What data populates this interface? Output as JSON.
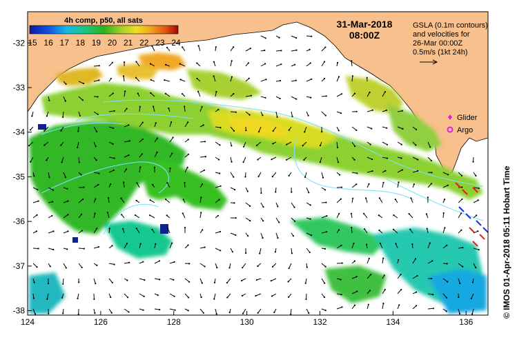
{
  "map": {
    "date_line": "31-Mar-2018",
    "time_line": "08:00Z",
    "colorbar": {
      "title": "4h comp, p50, all sats",
      "labels": [
        "15",
        "16",
        "17",
        "18",
        "19",
        "20",
        "21",
        "22",
        "23",
        "24"
      ],
      "min": 15,
      "max": 24
    },
    "gsla_legend": {
      "line1": "GSLA (0.1m contours)",
      "line2": "and velocities for",
      "line3": "26-Mar 00:00Z",
      "line4": "0.5m/s (1kt 24h)"
    },
    "symbol_legend": [
      {
        "label": "Glider",
        "color": "#e020e0",
        "icon": "diamond-icon"
      },
      {
        "label": "Argo",
        "color": "#e020e0",
        "icon": "ring-icon"
      }
    ],
    "x_axis": {
      "min": 124,
      "max": 136.6,
      "tick_labels": [
        "124",
        "126",
        "128",
        "130",
        "132",
        "134",
        "136"
      ]
    },
    "y_axis": {
      "min": -38.1,
      "max": -31.3,
      "tick_labels": [
        "-32",
        "-33",
        "-34",
        "-35",
        "-36",
        "-37",
        "-38"
      ]
    },
    "credit": "© IMOS 01-Apr-2018 05:11 Hobart Time",
    "colors": {
      "land": "#f8c08c",
      "ocean": "#ffffff",
      "contour": "#7fe0ff",
      "arrow": "#000000"
    }
  }
}
